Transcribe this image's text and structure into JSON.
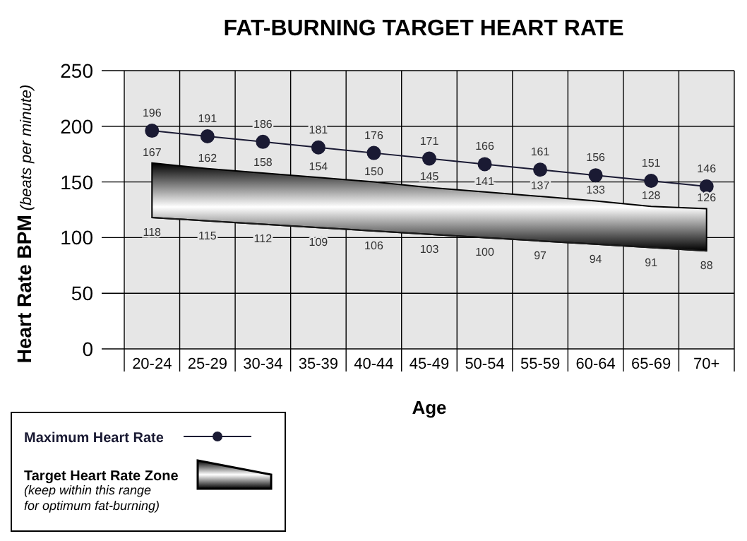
{
  "chart_data": {
    "type": "line",
    "title": "FAT-BURNING TARGET HEART RATE",
    "xlabel": "Age",
    "ylabel": "Heart Rate BPM (beats per minute)",
    "categories": [
      "20-24",
      "25-29",
      "30-34",
      "35-39",
      "40-44",
      "45-49",
      "50-54",
      "55-59",
      "60-64",
      "65-69",
      "70+"
    ],
    "series": [
      {
        "name": "Maximum Heart Rate",
        "color": "#1a1a33",
        "marker": "circle",
        "values": [
          196,
          191,
          186,
          181,
          176,
          171,
          166,
          161,
          156,
          151,
          146
        ]
      },
      {
        "name": "Target Heart Rate Zone",
        "type": "area",
        "color": "#000000",
        "values": [
          167,
          162,
          158,
          154,
          150,
          145,
          141,
          137,
          133,
          128,
          126
        ]
      },
      {
        "type": "line",
        "color": "#1a1a1a",
        "values": [
          118,
          115,
          112,
          109,
          106,
          103,
          100,
          97,
          94,
          91,
          88
        ]
      }
    ],
    "ylim": [
      0,
      250
    ],
    "yticks": [
      0,
      50,
      100,
      150,
      200,
      250
    ],
    "grid": true,
    "legend": "bottom left",
    "data_labels": true,
    "annotations": [
      "(keep within this range for optimum fat-burning)"
    ]
  }
}
